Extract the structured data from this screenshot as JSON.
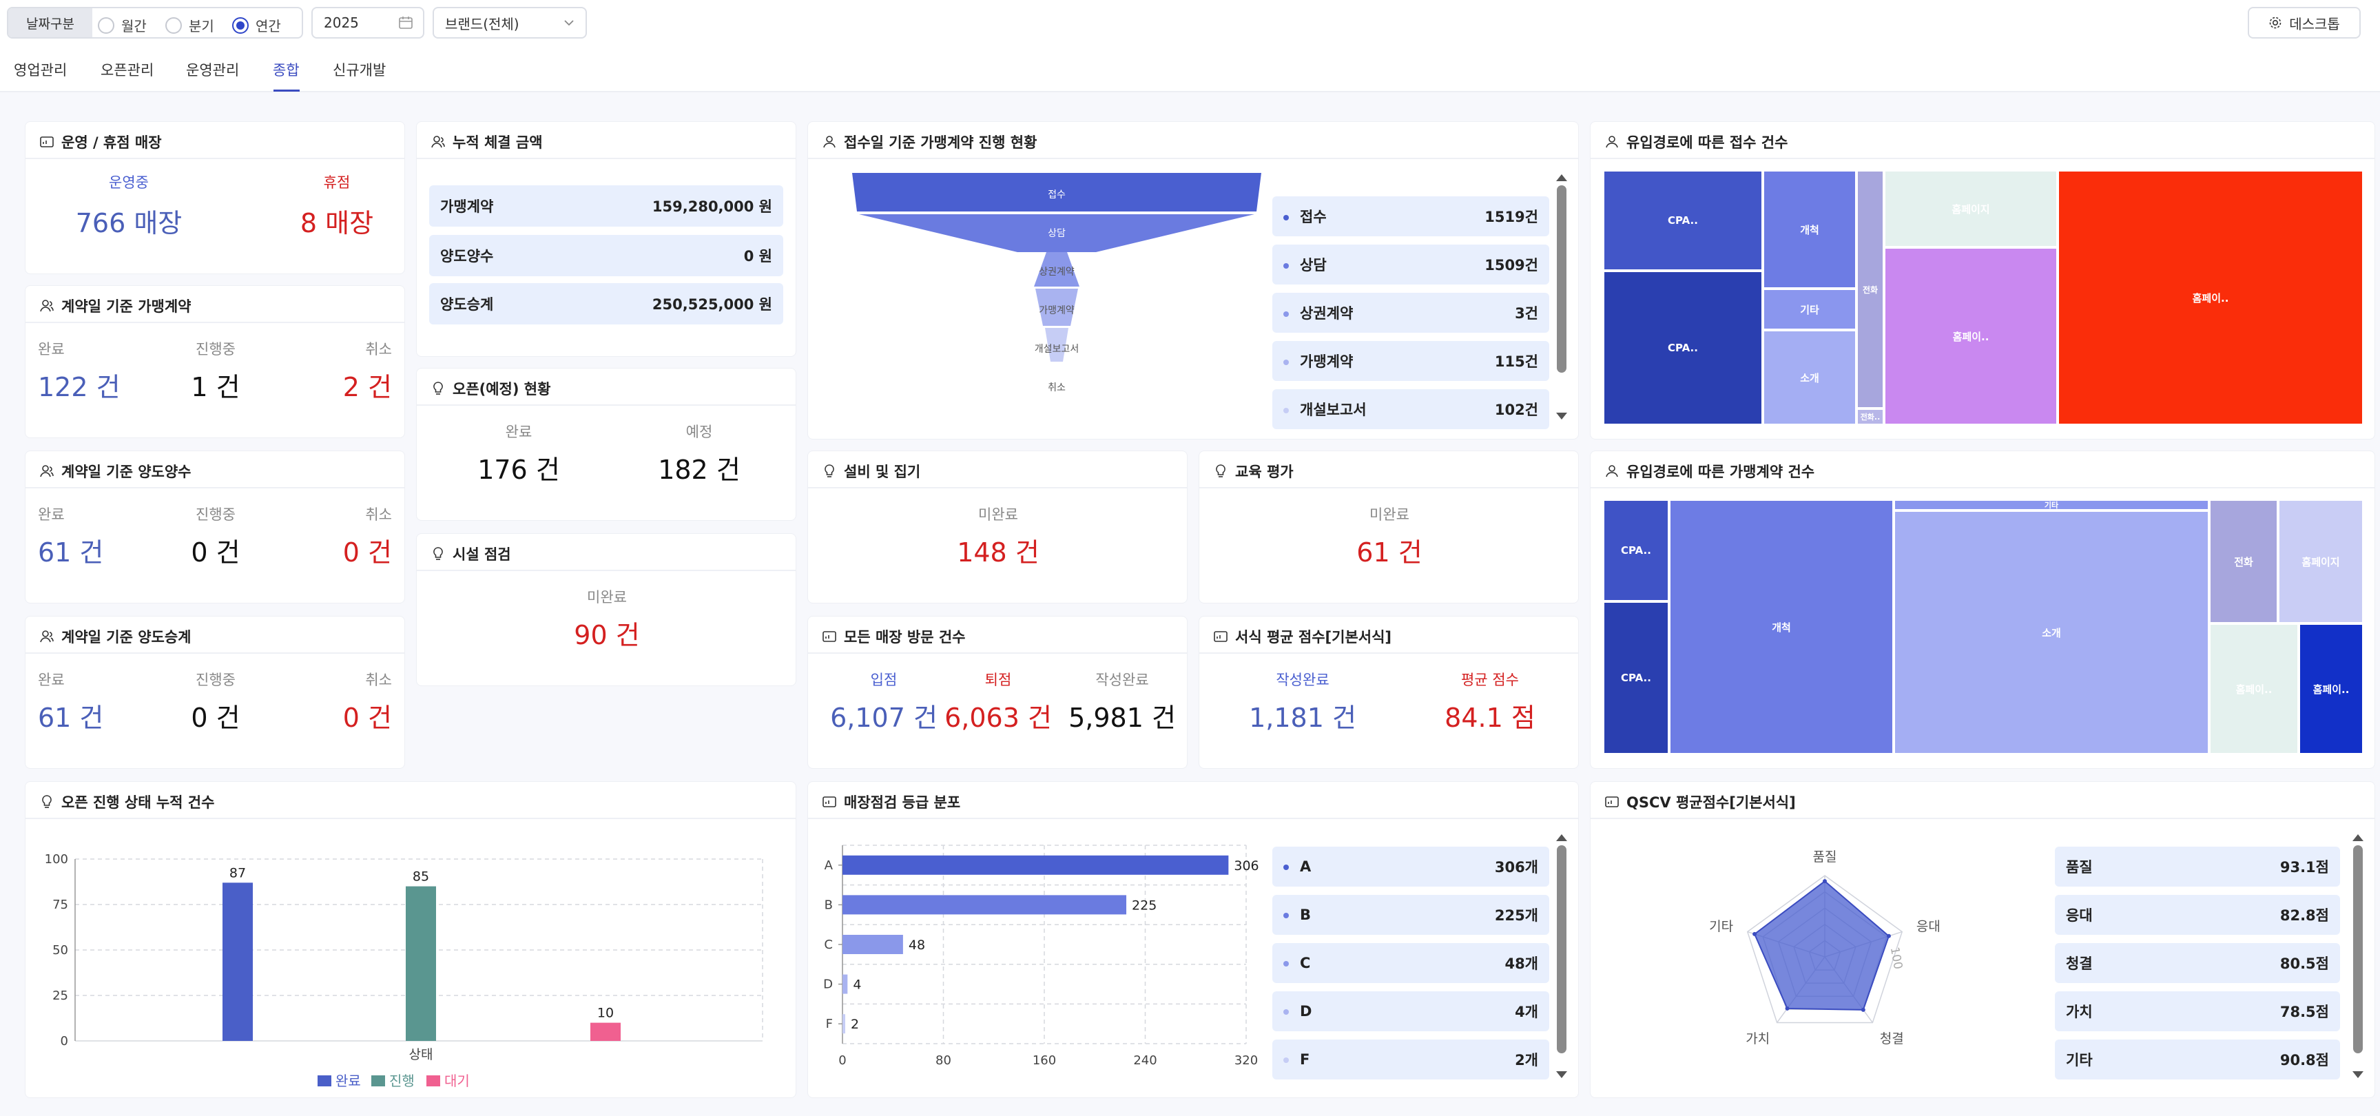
{
  "filters": {
    "date_kind_label": "날짜구분",
    "options": [
      "월간",
      "분기",
      "연간"
    ],
    "selected": "연간",
    "year": "2025",
    "brand": "브랜드(전체)",
    "desk_label": "데스크톱"
  },
  "tabs": [
    "영업관리",
    "오픈관리",
    "운영관리",
    "종합",
    "신규개발"
  ],
  "active_tab": "종합",
  "store_status": {
    "title": "운영 / 휴점 매장",
    "operating_label": "운영중",
    "operating_value": "766 매장",
    "closed_label": "휴점",
    "closed_value": "8 매장"
  },
  "franchise_contract": {
    "title": "계약일 기준 가맹계약",
    "done_label": "완료",
    "done_value": "122 건",
    "prog_label": "진행중",
    "prog_value": "1 건",
    "cancel_label": "취소",
    "cancel_value": "2 건"
  },
  "transfer_in": {
    "title": "계약일 기준 양도양수",
    "done_label": "완료",
    "done_value": "61 건",
    "prog_label": "진행중",
    "prog_value": "0 건",
    "cancel_label": "취소",
    "cancel_value": "0 건"
  },
  "transfer_succ": {
    "title": "계약일 기준 양도승계",
    "done_label": "완료",
    "done_value": "61 건",
    "prog_label": "진행중",
    "prog_value": "0 건",
    "cancel_label": "취소",
    "cancel_value": "0 건"
  },
  "cumulative": {
    "title": "누적 체결 금액",
    "rows": [
      {
        "label": "가맹계약",
        "value": "159,280,000 원"
      },
      {
        "label": "양도양수",
        "value": "0 원"
      },
      {
        "label": "양도승계",
        "value": "250,525,000 원"
      }
    ]
  },
  "open_status": {
    "title": "오픈(예정) 현황",
    "done_label": "완료",
    "done_value": "176 건",
    "plan_label": "예정",
    "plan_value": "182 건"
  },
  "facility": {
    "title": "시설 점검",
    "label": "미완료",
    "value": "90 건"
  },
  "funnel": {
    "title": "접수일 기준 가맹계약 진행 현황",
    "stages": [
      "접수",
      "상담",
      "상권계약",
      "가맹계약",
      "개설보고서",
      "취소"
    ],
    "list": [
      {
        "label": "접수",
        "value": "1519건",
        "color": "#4a5fd0"
      },
      {
        "label": "상담",
        "value": "1509건",
        "color": "#6a7be0"
      },
      {
        "label": "상권계약",
        "value": "3건",
        "color": "#8a98ea"
      },
      {
        "label": "가맹계약",
        "value": "115건",
        "color": "#a9b3f0"
      },
      {
        "label": "개설보고서",
        "value": "102건",
        "color": "#c6cdf5"
      }
    ]
  },
  "equipment": {
    "title": "설비 및 집기",
    "label": "미완료",
    "value": "148 건"
  },
  "education": {
    "title": "교육 평가",
    "label": "미완료",
    "value": "61 건"
  },
  "visits": {
    "title": "모든 매장 방문 건수",
    "in_label": "입점",
    "in_value": "6,107 건",
    "out_label": "퇴점",
    "out_value": "6,063 건",
    "written_label": "작성완료",
    "written_value": "5,981 건"
  },
  "form_score": {
    "title": "서식 평균 점수[기본서식]",
    "done_label": "작성완료",
    "done_value": "1,181 건",
    "avg_label": "평균 점수",
    "avg_value": "84.1 점"
  },
  "treemap1": {
    "title": "유입경로에 따른 접수 건수",
    "tiles": [
      "CPA..",
      "CPA..",
      "개척",
      "기타",
      "소개",
      "전화",
      "전화..",
      "홈페이지",
      "홈페이..",
      "홈페이.."
    ]
  },
  "treemap2": {
    "title": "유입경로에 따른 가맹계약 건수",
    "tiles": [
      "CPA..",
      "CPA..",
      "개척",
      "기타",
      "소개",
      "전화",
      "홈페이지",
      "홈페이..",
      "홈페이.."
    ]
  },
  "open_progress": {
    "title": "오픈 진행 상태 누적 건수"
  },
  "grade": {
    "title": "매장점검 등급 분포",
    "list": [
      {
        "label": "A",
        "value": "306개",
        "color": "#4a5fd0"
      },
      {
        "label": "B",
        "value": "225개",
        "color": "#6a7be0"
      },
      {
        "label": "C",
        "value": "48개",
        "color": "#8a98ea"
      },
      {
        "label": "D",
        "value": "4개",
        "color": "#a9b3f0"
      },
      {
        "label": "F",
        "value": "2개",
        "color": "#c6cdf5"
      }
    ]
  },
  "qscv": {
    "title": "QSCV 평균점수[기본서식]",
    "list": [
      {
        "label": "품질",
        "value": "93.1점"
      },
      {
        "label": "응대",
        "value": "82.8점"
      },
      {
        "label": "청결",
        "value": "80.5점"
      },
      {
        "label": "가치",
        "value": "78.5점"
      },
      {
        "label": "기타",
        "value": "90.8점"
      }
    ]
  },
  "chart_data": [
    {
      "type": "bar",
      "title": "오픈 진행 상태 누적 건수",
      "categories": [
        "상태"
      ],
      "xlabel": "상태",
      "series": [
        {
          "name": "완료",
          "values": [
            87
          ],
          "color": "#4a5fc8"
        },
        {
          "name": "진행",
          "values": [
            85
          ],
          "color": "#5a9690"
        },
        {
          "name": "대기",
          "values": [
            10
          ],
          "color": "#f06090"
        }
      ],
      "ylim": [
        0,
        100
      ],
      "yticks": [
        0,
        25,
        50,
        75,
        100
      ]
    },
    {
      "type": "bar",
      "title": "매장점검 등급 분포",
      "orientation": "horizontal",
      "categories": [
        "A",
        "B",
        "C",
        "D",
        "F"
      ],
      "values": [
        306,
        225,
        48,
        4,
        2
      ],
      "colors": [
        "#4a5fd0",
        "#6a7be0",
        "#8a98ea",
        "#a9b3f0",
        "#c6cdf5"
      ],
      "xlim": [
        0,
        320
      ],
      "xticks": [
        0,
        80,
        160,
        240,
        320
      ]
    },
    {
      "type": "radar",
      "title": "QSCV 평균점수[기본서식]",
      "categories": [
        "품질",
        "응대",
        "청결",
        "가치",
        "기타"
      ],
      "values": [
        93.1,
        82.8,
        80.5,
        78.5,
        90.8
      ],
      "max": 100,
      "max_label": "100"
    }
  ]
}
